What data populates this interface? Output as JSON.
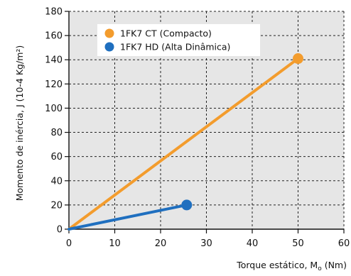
{
  "chart_data": {
    "type": "line",
    "xlabel": "Torque estático, M",
    "xlabel_sub": "o",
    "xlabel_unit": " (Nm)",
    "ylabel": "Momento de inércia, J (10-4 Kg/m²)",
    "xlim": [
      0,
      60
    ],
    "ylim": [
      0,
      180
    ],
    "xticks": [
      0,
      10,
      20,
      30,
      40,
      50,
      60
    ],
    "yticks": [
      0,
      20,
      40,
      60,
      80,
      100,
      120,
      140,
      160,
      180
    ],
    "grid": "dashed",
    "legend_position": "top-left",
    "plot_background": "#e6e6e6",
    "series": [
      {
        "name": "1FK7 CT (Compacto)",
        "color": "#f39c2d",
        "x": [
          0,
          50
        ],
        "y": [
          0,
          141
        ]
      },
      {
        "name": "1FK7 HD (Alta Dinâmica)",
        "color": "#1f6fbf",
        "x": [
          0,
          25.7
        ],
        "y": [
          0,
          20
        ]
      }
    ]
  }
}
